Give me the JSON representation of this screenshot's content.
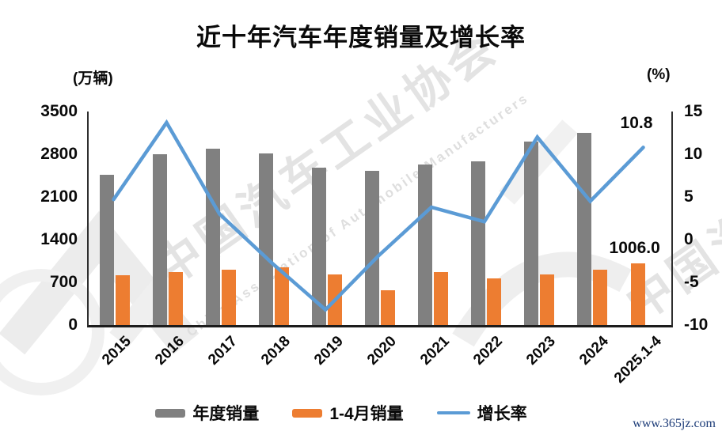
{
  "title": "近十年汽车年度销量及增长率",
  "left_axis_unit": "(万辆)",
  "right_axis_unit": "(%)",
  "legend": [
    {
      "label": "年度销量",
      "type": "bar",
      "color": "#808080"
    },
    {
      "label": "1-4月销量",
      "type": "bar",
      "color": "#ED7D31"
    },
    {
      "label": "增长率",
      "type": "line",
      "color": "#5B9BD5"
    }
  ],
  "watermark": {
    "cn": "中国汽车工业协会",
    "en": "China Association of Automobile Manufacturers"
  },
  "footer_url": "www.365jz.com",
  "chart_data": {
    "type": "bar",
    "subtype": "bar+line combo, dual axis",
    "title": "近十年汽车年度销量及增长率",
    "categories": [
      "2015",
      "2016",
      "2017",
      "2018",
      "2019",
      "2020",
      "2021",
      "2022",
      "2023",
      "2024",
      "2025.1-4"
    ],
    "series": [
      {
        "name": "年度销量",
        "type": "bar",
        "axis": "left",
        "color": "#808080",
        "values": [
          2460,
          2803,
          2888,
          2808,
          2577,
          2531,
          2628,
          2686,
          3009,
          3144,
          null
        ]
      },
      {
        "name": "1-4月销量",
        "type": "bar",
        "axis": "left",
        "color": "#ED7D31",
        "values": [
          815,
          865,
          905,
          950,
          835,
          577,
          875,
          770,
          824,
          908,
          1006.0
        ]
      },
      {
        "name": "增长率",
        "type": "line",
        "axis": "right",
        "color": "#5B9BD5",
        "values": [
          4.7,
          13.7,
          3.0,
          -2.8,
          -8.2,
          -1.9,
          3.8,
          2.1,
          12.0,
          4.5,
          10.8
        ]
      }
    ],
    "left_axis": {
      "unit": "(万辆)",
      "min": 0,
      "max": 3500,
      "ticks": [
        3500,
        2800,
        2100,
        1400,
        700,
        0
      ]
    },
    "right_axis": {
      "unit": "(%)",
      "min": -10,
      "max": 15,
      "ticks": [
        15,
        10,
        5,
        0,
        -5,
        -10
      ]
    },
    "data_labels": [
      {
        "series": "增长率",
        "category": "2025.1-4",
        "text": "10.8"
      },
      {
        "series": "1-4月销量",
        "category": "2025.1-4",
        "text": "1006.0"
      }
    ],
    "grid": false,
    "legend_position": "bottom"
  }
}
